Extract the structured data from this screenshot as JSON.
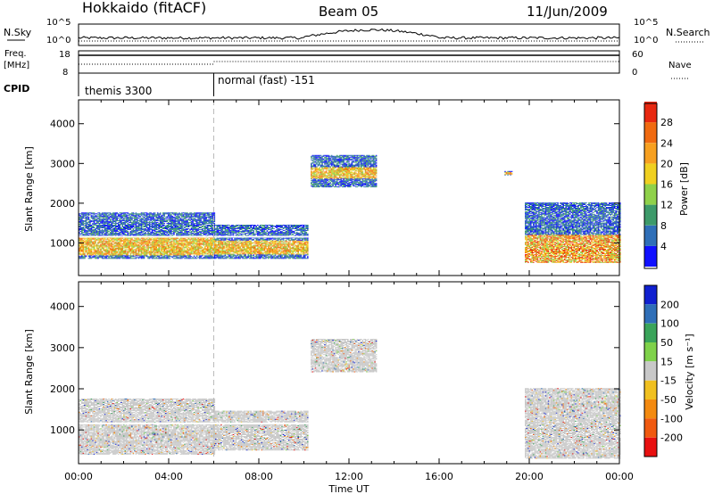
{
  "header": {
    "radar": "Hokkaido (fitACF)",
    "beam": "Beam 05",
    "date": "11/Jun/2009"
  },
  "noise_panel": {
    "left_label": "N.Sky",
    "right_label": "N.Search",
    "left_ticks": [
      "10^5",
      "10^0"
    ],
    "right_ticks": [
      "10^5",
      "10^0"
    ]
  },
  "freq_panel": {
    "left_label_line1": "Freq.",
    "left_label_line2": "[MHz]",
    "right_label": "Nave",
    "left_ticks": [
      "18",
      "8"
    ],
    "right_ticks": [
      "60",
      "0"
    ]
  },
  "cpid_panel": {
    "label": "CPID",
    "segments": [
      {
        "name": "themis 3300",
        "start_hour": 0,
        "end_hour": 6
      },
      {
        "name": "normal (fast) -151",
        "start_hour": 6,
        "end_hour": 24
      }
    ]
  },
  "x_axis": {
    "label": "Time UT",
    "ticks": [
      "00:00",
      "04:00",
      "08:00",
      "12:00",
      "16:00",
      "20:00",
      "00:00"
    ]
  },
  "y_axis": {
    "label": "Slant Range [km]",
    "ticks": [
      "1000",
      "2000",
      "3000",
      "4000"
    ]
  },
  "power_colorbar": {
    "label": "Power [dB]",
    "ticks": [
      "4",
      "8",
      "12",
      "16",
      "20",
      "24",
      "28"
    ],
    "colors": [
      "#1010ff",
      "#2f6fb8",
      "#3d9a6a",
      "#8fd14a",
      "#f0d020",
      "#f7a020",
      "#f06a10",
      "#e82810"
    ]
  },
  "velocity_colorbar": {
    "label": "Velocity [m s⁻¹]",
    "ticks": [
      "200",
      "100",
      "50",
      "15",
      "-15",
      "-50",
      "-100",
      "-200"
    ],
    "colors": [
      "#1020d0",
      "#2f6fb8",
      "#3aa45a",
      "#7fd24a",
      "#c8c8c8",
      "#f0c020",
      "#f38a10",
      "#f05a10",
      "#e81010"
    ]
  },
  "chart_data": [
    {
      "type": "heatmap",
      "name": "Power",
      "x": "Time UT (hours)",
      "y": "Slant Range [km]",
      "xlim": [
        0,
        24
      ],
      "ylim": [
        180,
        4600
      ],
      "regions": [
        {
          "t0": 0.0,
          "t1": 6.0,
          "r0": 600,
          "r1": 1750,
          "level": "mid",
          "core_r0": 680,
          "core_r1": 1150
        },
        {
          "t0": 6.0,
          "t1": 10.2,
          "r0": 600,
          "r1": 1450,
          "level": "mid",
          "core_r0": 700,
          "core_r1": 1050
        },
        {
          "t0": 10.3,
          "t1": 13.2,
          "r0": 2400,
          "r1": 3200,
          "level": "low",
          "core_r0": 2600,
          "core_r1": 2900
        },
        {
          "t0": 18.9,
          "t1": 19.2,
          "r0": 2700,
          "r1": 2800,
          "level": "low",
          "core_r0": 2720,
          "core_r1": 2780
        },
        {
          "t0": 19.8,
          "t1": 24.0,
          "r0": 500,
          "r1": 2000,
          "level": "high",
          "core_r0": 500,
          "core_r1": 1200
        }
      ]
    },
    {
      "type": "heatmap",
      "name": "Velocity",
      "x": "Time UT (hours)",
      "y": "Slant Range [km]",
      "xlim": [
        0,
        24
      ],
      "ylim": [
        180,
        4600
      ],
      "regions": [
        {
          "t0": 0.0,
          "t1": 6.0,
          "r0": 400,
          "r1": 1750,
          "velocity": 0
        },
        {
          "t0": 6.0,
          "t1": 10.2,
          "r0": 500,
          "r1": 1450,
          "velocity": 0
        },
        {
          "t0": 10.3,
          "t1": 13.2,
          "r0": 2400,
          "r1": 3200,
          "velocity": 0
        },
        {
          "t0": 19.8,
          "t1": 24.0,
          "r0": 300,
          "r1": 2000,
          "velocity": 0
        }
      ]
    }
  ]
}
